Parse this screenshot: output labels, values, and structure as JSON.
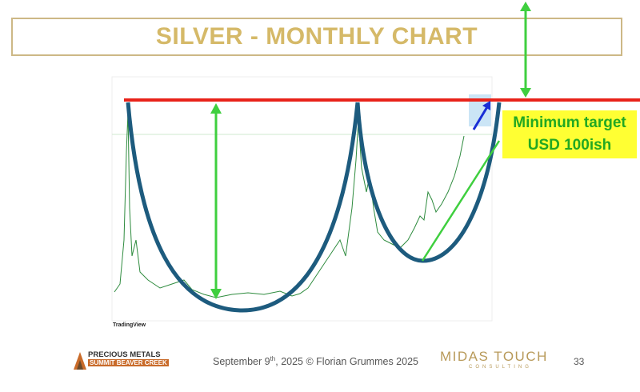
{
  "header": {
    "title": "SILVER - MONTHLY CHART"
  },
  "chart": {
    "source": "TradingView",
    "annotation_line1": "Minimum target",
    "annotation_line2": "USD 100ish"
  },
  "footer": {
    "date_main": "September 9",
    "date_suffix": "th",
    "date_rest": ", 2025 © Florian Grummes 2025",
    "page": "33"
  },
  "logos": {
    "midas": "MIDAS TOUCH",
    "midas_sub": "CONSULTING",
    "summit_line1": "PRECIOUS METALS",
    "summit_line2": "SUMMIT BEAVER CREEK"
  }
}
